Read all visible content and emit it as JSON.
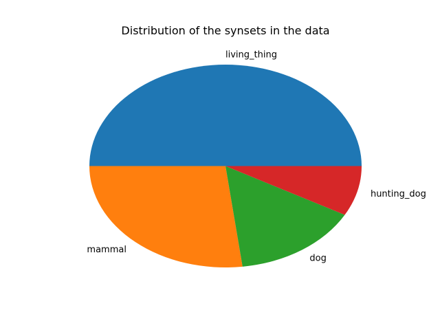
{
  "chart_data": {
    "type": "pie",
    "title": "Distribution of the synsets in the data",
    "labels": [
      "living_thing",
      "mammal",
      "dog",
      "hunting_dog"
    ],
    "values": [
      50,
      27,
      15,
      8
    ],
    "colors": [
      "#1f77b4",
      "#ff7f0e",
      "#2ca02c",
      "#d62728"
    ],
    "start_angle_deg": 0,
    "direction": "counterclockwise",
    "legend": "none"
  }
}
